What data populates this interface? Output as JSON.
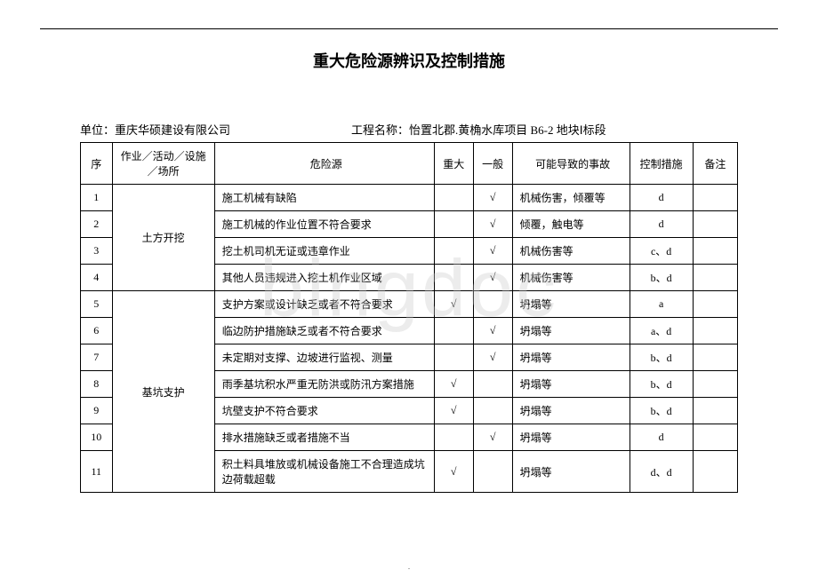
{
  "top_dot": ".",
  "title": "重大危险源辨识及控制措施",
  "meta": {
    "unit_label": "单位：",
    "unit_value": "重庆华硕建设有限公司",
    "project_label": "工程名称：",
    "project_value": "怡置北郡.黄桷水库项目 B6-2 地块Ⅰ标段"
  },
  "table": {
    "headers": {
      "seq": "序",
      "activity": "作业／活动／设施／场所",
      "hazard": "危险源",
      "major": "重大",
      "general": "一般",
      "accident": "可能导致的事故",
      "measure": "控制措施",
      "remark": "备注"
    },
    "groups": [
      {
        "activity": "土方开挖",
        "rows": [
          {
            "seq": "1",
            "hazard": "施工机械有缺陷",
            "major": "",
            "general": "√",
            "accident": "机械伤害，倾覆等",
            "measure": "d",
            "remark": ""
          },
          {
            "seq": "2",
            "hazard": "施工机械的作业位置不符合要求",
            "major": "",
            "general": "√",
            "accident": "倾覆，触电等",
            "measure": "d",
            "remark": ""
          },
          {
            "seq": "3",
            "hazard": "挖土机司机无证或违章作业",
            "major": "",
            "general": "√",
            "accident": "机械伤害等",
            "measure": "c、d",
            "remark": ""
          },
          {
            "seq": "4",
            "hazard": "其他人员违规进入挖土机作业区域",
            "major": "",
            "general": "√",
            "accident": "机械伤害等",
            "measure": "b、d",
            "remark": ""
          }
        ]
      },
      {
        "activity": "基坑支护",
        "rows": [
          {
            "seq": "5",
            "hazard": "支护方案或设计缺乏或者不符合要求",
            "major": "√",
            "general": "",
            "accident": "坍塌等",
            "measure": "a",
            "remark": ""
          },
          {
            "seq": "6",
            "hazard": "临边防护措施缺乏或者不符合要求",
            "major": "",
            "general": "√",
            "accident": "坍塌等",
            "measure": "a、d",
            "remark": ""
          },
          {
            "seq": "7",
            "hazard": "未定期对支撑、边坡进行监视、测量",
            "major": "",
            "general": "√",
            "accident": "坍塌等",
            "measure": "b、d",
            "remark": ""
          },
          {
            "seq": "8",
            "hazard": "雨季基坑积水严重无防洪或防汛方案措施",
            "major": "√",
            "general": "",
            "accident": "坍塌等",
            "measure": "b、d",
            "remark": ""
          },
          {
            "seq": "9",
            "hazard": "坑壁支护不符合要求",
            "major": "√",
            "general": "",
            "accident": "坍塌等",
            "measure": "b、d",
            "remark": ""
          },
          {
            "seq": "10",
            "hazard": "排水措施缺乏或者措施不当",
            "major": "",
            "general": "√",
            "accident": "坍塌等",
            "measure": "d",
            "remark": ""
          },
          {
            "seq": "11",
            "hazard": "积土料具堆放或机械设备施工不合理造成坑边荷载超载",
            "major": "√",
            "general": "",
            "accident": "坍塌等",
            "measure": "d、d",
            "remark": ""
          }
        ]
      }
    ]
  },
  "watermark": "bingdoc",
  "bottom_dot": "."
}
